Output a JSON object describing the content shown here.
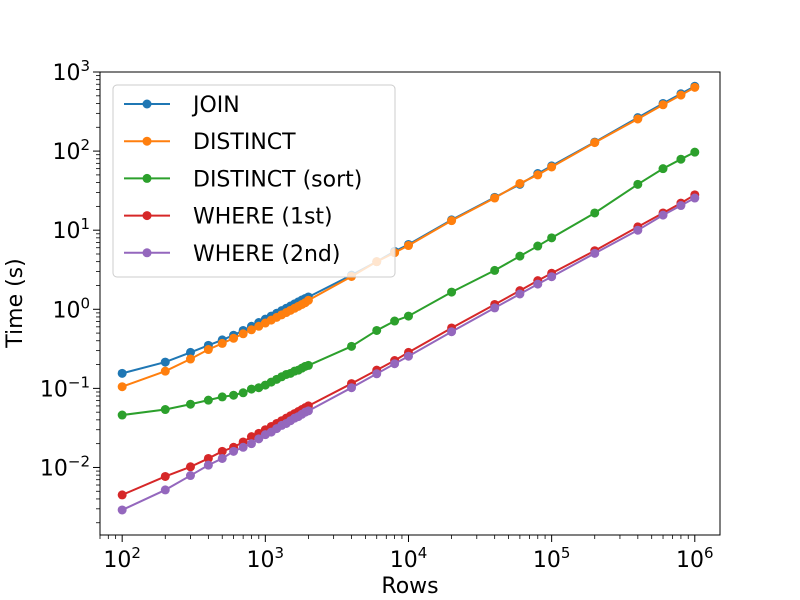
{
  "chart_data": {
    "type": "line",
    "xscale": "log",
    "yscale": "log",
    "xlabel": "Rows",
    "ylabel": "Time (s)",
    "xlim": [
      70,
      1500000
    ],
    "ylim": [
      0.0014,
      1000
    ],
    "x_ticks": [
      {
        "value": 100,
        "base": "10",
        "exp": "2"
      },
      {
        "value": 1000,
        "base": "10",
        "exp": "3"
      },
      {
        "value": 10000,
        "base": "10",
        "exp": "4"
      },
      {
        "value": 100000,
        "base": "10",
        "exp": "5"
      },
      {
        "value": 1000000,
        "base": "10",
        "exp": "6"
      }
    ],
    "y_ticks": [
      {
        "value": 0.01,
        "base": "10",
        "exp": "−2"
      },
      {
        "value": 0.1,
        "base": "10",
        "exp": "−1"
      },
      {
        "value": 1,
        "base": "10",
        "exp": "0"
      },
      {
        "value": 10,
        "base": "10",
        "exp": "1"
      },
      {
        "value": 100,
        "base": "10",
        "exp": "2"
      },
      {
        "value": 1000,
        "base": "10",
        "exp": "3"
      }
    ],
    "legend_position": "top-left",
    "grid": false,
    "x": [
      100,
      200,
      300,
      400,
      500,
      600,
      700,
      800,
      900,
      1000,
      1100,
      1200,
      1300,
      1400,
      1500,
      1600,
      1700,
      1800,
      1900,
      2000,
      4000,
      6000,
      8000,
      10000,
      20000,
      40000,
      60000,
      80000,
      100000,
      200000,
      400000,
      600000,
      800000,
      1000000
    ],
    "series": [
      {
        "name": "JOIN",
        "color": "#1f77b4",
        "values": [
          0.155,
          0.215,
          0.285,
          0.35,
          0.41,
          0.47,
          0.54,
          0.61,
          0.68,
          0.75,
          0.82,
          0.89,
          0.96,
          1.03,
          1.1,
          1.17,
          1.24,
          1.31,
          1.37,
          1.43,
          2.7,
          4.0,
          5.4,
          6.6,
          13.5,
          26,
          38,
          52,
          65,
          130,
          265,
          400,
          530,
          660
        ]
      },
      {
        "name": "DISTINCT",
        "color": "#ff7f0e",
        "values": [
          0.105,
          0.165,
          0.235,
          0.31,
          0.37,
          0.43,
          0.49,
          0.55,
          0.61,
          0.67,
          0.73,
          0.79,
          0.85,
          0.91,
          0.97,
          1.03,
          1.09,
          1.15,
          1.21,
          1.3,
          2.6,
          4.0,
          5.2,
          6.4,
          13.2,
          25.5,
          39,
          50,
          63,
          128,
          255,
          385,
          510,
          640
        ]
      },
      {
        "name": "DISTINCT (sort)",
        "color": "#2ca02c",
        "values": [
          0.046,
          0.054,
          0.063,
          0.071,
          0.078,
          0.082,
          0.088,
          0.098,
          0.102,
          0.11,
          0.12,
          0.13,
          0.14,
          0.15,
          0.155,
          0.165,
          0.17,
          0.18,
          0.19,
          0.195,
          0.34,
          0.54,
          0.71,
          0.82,
          1.65,
          3.1,
          4.7,
          6.3,
          8.0,
          16.5,
          38,
          60,
          79,
          97
        ]
      },
      {
        "name": "WHERE (1st)",
        "color": "#d62728",
        "values": [
          0.0045,
          0.0077,
          0.0102,
          0.013,
          0.016,
          0.018,
          0.021,
          0.0245,
          0.027,
          0.03,
          0.033,
          0.036,
          0.039,
          0.042,
          0.045,
          0.048,
          0.051,
          0.054,
          0.057,
          0.06,
          0.115,
          0.17,
          0.225,
          0.285,
          0.58,
          1.15,
          1.72,
          2.3,
          2.85,
          5.5,
          11,
          16.5,
          22,
          28
        ]
      },
      {
        "name": "WHERE (2nd)",
        "color": "#9467bd",
        "values": [
          0.0029,
          0.0052,
          0.0079,
          0.0107,
          0.013,
          0.016,
          0.018,
          0.02,
          0.023,
          0.026,
          0.028,
          0.031,
          0.034,
          0.036,
          0.039,
          0.042,
          0.044,
          0.047,
          0.05,
          0.052,
          0.102,
          0.153,
          0.205,
          0.255,
          0.52,
          1.04,
          1.56,
          2.08,
          2.58,
          5.1,
          10,
          15.5,
          20.5,
          25.5
        ]
      }
    ]
  }
}
